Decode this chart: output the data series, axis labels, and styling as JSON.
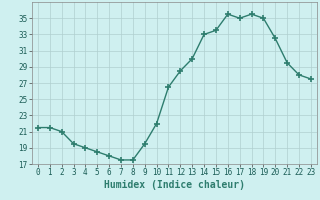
{
  "x": [
    0,
    1,
    2,
    3,
    4,
    5,
    6,
    7,
    8,
    9,
    10,
    11,
    12,
    13,
    14,
    15,
    16,
    17,
    18,
    19,
    20,
    21,
    22,
    23
  ],
  "y": [
    21.5,
    21.5,
    21.0,
    19.5,
    19.0,
    18.5,
    18.0,
    17.5,
    17.5,
    19.5,
    22.0,
    26.5,
    28.5,
    30.0,
    33.0,
    33.5,
    35.5,
    35.0,
    35.5,
    35.0,
    32.5,
    29.5,
    28.0,
    27.5
  ],
  "line_color": "#2e7d6e",
  "marker": "+",
  "marker_size": 4,
  "bg_color": "#cff0f0",
  "grid_color": "#b0d0d0",
  "xlabel": "Humidex (Indice chaleur)",
  "ylim": [
    17,
    37
  ],
  "xlim": [
    -0.5,
    23.5
  ],
  "yticks": [
    17,
    19,
    21,
    23,
    25,
    27,
    29,
    31,
    33,
    35
  ],
  "xticks": [
    0,
    1,
    2,
    3,
    4,
    5,
    6,
    7,
    8,
    9,
    10,
    11,
    12,
    13,
    14,
    15,
    16,
    17,
    18,
    19,
    20,
    21,
    22,
    23
  ],
  "tick_fontsize": 5.5,
  "xlabel_fontsize": 7.0,
  "line_width": 1.0
}
